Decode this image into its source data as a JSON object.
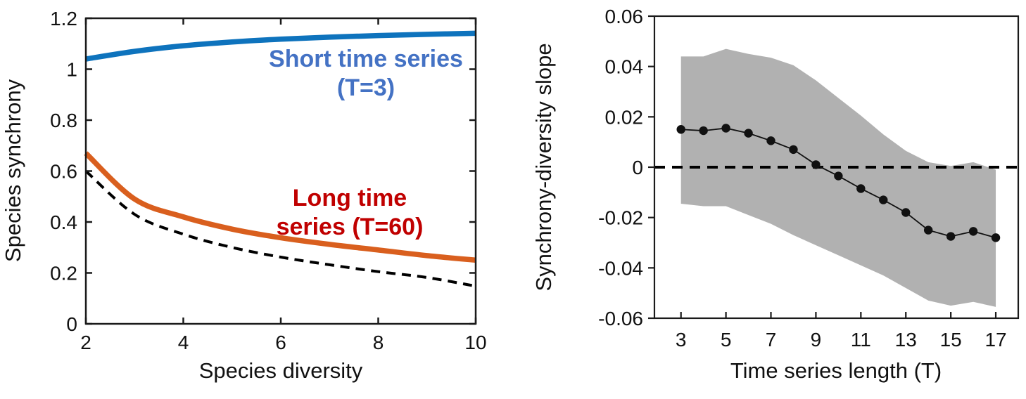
{
  "figure": {
    "background": "#ffffff"
  },
  "chart_data": [
    {
      "id": "synchrony-vs-diversity",
      "type": "line",
      "title": "",
      "xlabel": "Species diversity",
      "ylabel": "Species synchrony",
      "xlim": [
        2,
        10
      ],
      "ylim": [
        0,
        1.2
      ],
      "grid": false,
      "legend_position": "none",
      "xtick_values": [
        2,
        4,
        6,
        8,
        10
      ],
      "xtick_labels": [
        "2",
        "4",
        "6",
        "8",
        "10"
      ],
      "ytick_values": [
        0,
        0.2,
        0.4,
        0.6,
        0.8,
        1,
        1.2
      ],
      "ytick_labels": [
        "0",
        "0.2",
        "0.4",
        "0.6",
        "0.8",
        "1",
        "1.2"
      ],
      "x": [
        2,
        3,
        4,
        5,
        6,
        7,
        8,
        9,
        10
      ],
      "series": [
        {
          "name": "Short time series (T=3)",
          "color": "#0e73bd",
          "line_style": "solid",
          "line_width": 7.5,
          "values": [
            1.04,
            1.07,
            1.092,
            1.107,
            1.118,
            1.126,
            1.132,
            1.137,
            1.141
          ]
        },
        {
          "name": "Long time series (T=60)",
          "color": "#d95f1e",
          "line_style": "solid",
          "line_width": 7.5,
          "values": [
            0.67,
            0.49,
            0.42,
            0.372,
            0.338,
            0.312,
            0.29,
            0.268,
            0.25
          ]
        },
        {
          "name": "dashed baseline",
          "color": "#000000",
          "line_style": "dashed",
          "line_width": 4,
          "values": [
            0.6,
            0.43,
            0.352,
            0.3,
            0.262,
            0.232,
            0.205,
            0.182,
            0.148
          ]
        }
      ],
      "annotations": {
        "short": {
          "line1": "Short time series",
          "line2": "(T=3)",
          "color": "#4472c4"
        },
        "long": {
          "line1": "Long time",
          "line2": "series (T=60)",
          "color": "#c00000"
        }
      }
    },
    {
      "id": "slope-vs-length",
      "type": "line",
      "title": "",
      "xlabel": "Time series length (T)",
      "ylabel": "Synchrony-diversity slope",
      "xlim": [
        1.82,
        18.0
      ],
      "ylim": [
        -0.06,
        0.06
      ],
      "grid": false,
      "legend_position": "none",
      "xtick_values": [
        3,
        5,
        7,
        9,
        11,
        13,
        15,
        17
      ],
      "xtick_labels": [
        "3",
        "5",
        "7",
        "9",
        "11",
        "13",
        "15",
        "17"
      ],
      "ytick_values": [
        -0.06,
        -0.04,
        -0.02,
        0,
        0.02,
        0.04,
        0.06
      ],
      "ytick_labels": [
        "-0.06",
        "-0.04",
        "-0.02",
        "0",
        "0.02",
        "0.04",
        "0.06"
      ],
      "x": [
        3,
        4,
        5,
        6,
        7,
        8,
        9,
        10,
        11,
        12,
        13,
        14,
        15,
        16,
        17
      ],
      "slope": [
        0.015,
        0.0145,
        0.0155,
        0.0135,
        0.0105,
        0.007,
        0.001,
        -0.0035,
        -0.0085,
        -0.013,
        -0.018,
        -0.025,
        -0.0275,
        -0.0255,
        -0.028
      ],
      "band_upper": [
        0.044,
        0.044,
        0.047,
        0.045,
        0.0435,
        0.0405,
        0.0345,
        0.0275,
        0.0205,
        0.013,
        0.0065,
        0.002,
        0.0005,
        0.002,
        -0.001
      ],
      "band_lower": [
        -0.0145,
        -0.0155,
        -0.0155,
        -0.019,
        -0.0225,
        -0.027,
        -0.031,
        -0.035,
        -0.039,
        -0.043,
        -0.048,
        -0.053,
        -0.055,
        -0.0535,
        -0.0555
      ],
      "band_color": "#b1b1b1",
      "line_color": "#111111",
      "marker_color": "#111111",
      "zero_line": {
        "value": 0,
        "style": "dashed",
        "color": "#000000"
      }
    }
  ]
}
